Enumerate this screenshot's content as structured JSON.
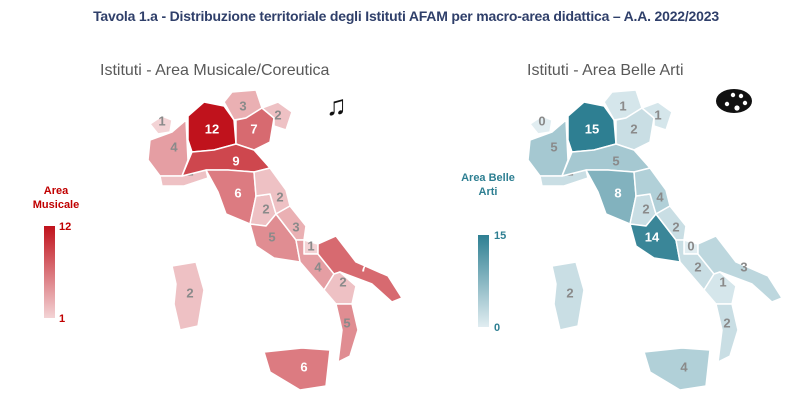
{
  "page_title": "Tavola 1.a - Distribuzione territoriale degli Istituti AFAM per macro-area didattica – A.A. 2022/2023",
  "chart_data": [
    {
      "type": "choropleth-map",
      "title": "Istituti - Area Musicale/Coreutica",
      "legend": {
        "title": "Area Musicale",
        "min": "1",
        "max": "12",
        "min_value": 1,
        "max_value": 12,
        "color_low": "#f3d3d5",
        "color_high": "#c0121c"
      },
      "icon": "music-notes-icon",
      "region_values": [
        {
          "region": "Valle d'Aosta",
          "value": 1
        },
        {
          "region": "Piemonte",
          "value": 4
        },
        {
          "region": "Lombardia",
          "value": 12
        },
        {
          "region": "Trentino-Alto Adige",
          "value": 3
        },
        {
          "region": "Veneto",
          "value": 7
        },
        {
          "region": "Friuli-Venezia Giulia",
          "value": 2
        },
        {
          "region": "Liguria",
          "value": 2
        },
        {
          "region": "Emilia-Romagna",
          "value": 9
        },
        {
          "region": "Toscana",
          "value": 6
        },
        {
          "region": "Umbria",
          "value": 2
        },
        {
          "region": "Marche",
          "value": 2
        },
        {
          "region": "Lazio",
          "value": 5
        },
        {
          "region": "Abruzzo",
          "value": 3
        },
        {
          "region": "Molise",
          "value": 1
        },
        {
          "region": "Campania",
          "value": 4
        },
        {
          "region": "Puglia",
          "value": 7
        },
        {
          "region": "Basilicata",
          "value": 2
        },
        {
          "region": "Calabria",
          "value": 5
        },
        {
          "region": "Sicilia",
          "value": 6
        },
        {
          "region": "Sardegna",
          "value": 2
        }
      ]
    },
    {
      "type": "choropleth-map",
      "title": "Istituti - Area Belle Arti",
      "legend": {
        "title": "Area Belle Arti",
        "min": "0",
        "max": "15",
        "min_value": 0,
        "max_value": 15,
        "color_low": "#e1edf1",
        "color_high": "#2e7f92"
      },
      "icon": "palette-icon",
      "region_values": [
        {
          "region": "Valle d'Aosta",
          "value": 0
        },
        {
          "region": "Piemonte",
          "value": 5
        },
        {
          "region": "Lombardia",
          "value": 15
        },
        {
          "region": "Trentino-Alto Adige",
          "value": 1
        },
        {
          "region": "Veneto",
          "value": 2
        },
        {
          "region": "Friuli-Venezia Giulia",
          "value": 1
        },
        {
          "region": "Liguria",
          "value": 2
        },
        {
          "region": "Emilia-Romagna",
          "value": 5
        },
        {
          "region": "Toscana",
          "value": 8
        },
        {
          "region": "Umbria",
          "value": 2
        },
        {
          "region": "Marche",
          "value": 4
        },
        {
          "region": "Lazio",
          "value": 14
        },
        {
          "region": "Abruzzo",
          "value": 2
        },
        {
          "region": "Molise",
          "value": 0
        },
        {
          "region": "Campania",
          "value": 2
        },
        {
          "region": "Puglia",
          "value": 3
        },
        {
          "region": "Basilicata",
          "value": 1
        },
        {
          "region": "Calabria",
          "value": 2
        },
        {
          "region": "Sicilia",
          "value": 4
        },
        {
          "region": "Sardegna",
          "value": 2
        }
      ]
    }
  ]
}
